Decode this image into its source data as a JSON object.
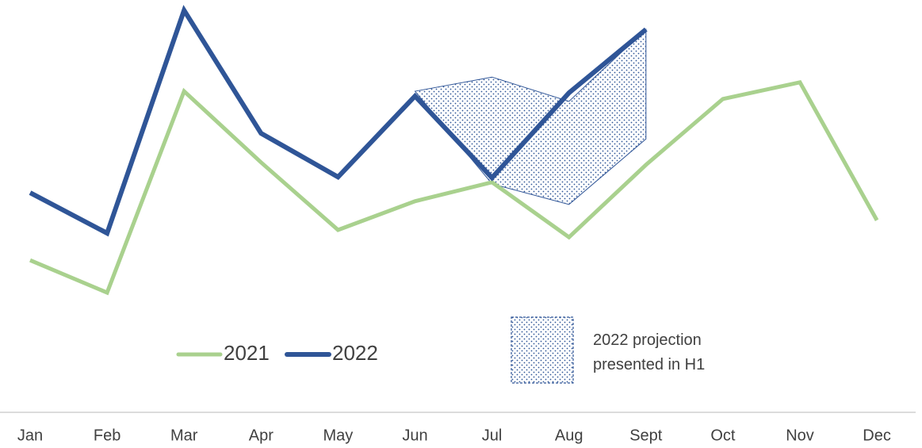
{
  "chart_data": {
    "type": "line",
    "categories": [
      "Jan",
      "Feb",
      "Mar",
      "Apr",
      "May",
      "Jun",
      "Jul",
      "Aug",
      "Sept",
      "Oct",
      "Nov",
      "Dec"
    ],
    "ylim": [
      0,
      100
    ],
    "series": [
      {
        "name": "2021",
        "color": "#a9d18e",
        "values": [
          37.6,
          29.6,
          79.4,
          61.8,
          45.1,
          52.2,
          56.9,
          43.3,
          61.2,
          77.5,
          81.6,
          47.5
        ]
      },
      {
        "name": "2022",
        "color": "#2f5597",
        "values": [
          54.3,
          44.3,
          99.4,
          69.0,
          58.2,
          78.2,
          58.0,
          79.0,
          94.7,
          null,
          null,
          null
        ]
      }
    ],
    "band": {
      "name": "2022 projection presented in H1",
      "color": "#2f5597",
      "upper": [
        null,
        null,
        null,
        null,
        null,
        79.4,
        82.9,
        76.9,
        94.7,
        null,
        null,
        null
      ],
      "lower": [
        null,
        null,
        null,
        null,
        null,
        79.4,
        56.5,
        51.4,
        67.6,
        null,
        null,
        null
      ]
    }
  }
}
